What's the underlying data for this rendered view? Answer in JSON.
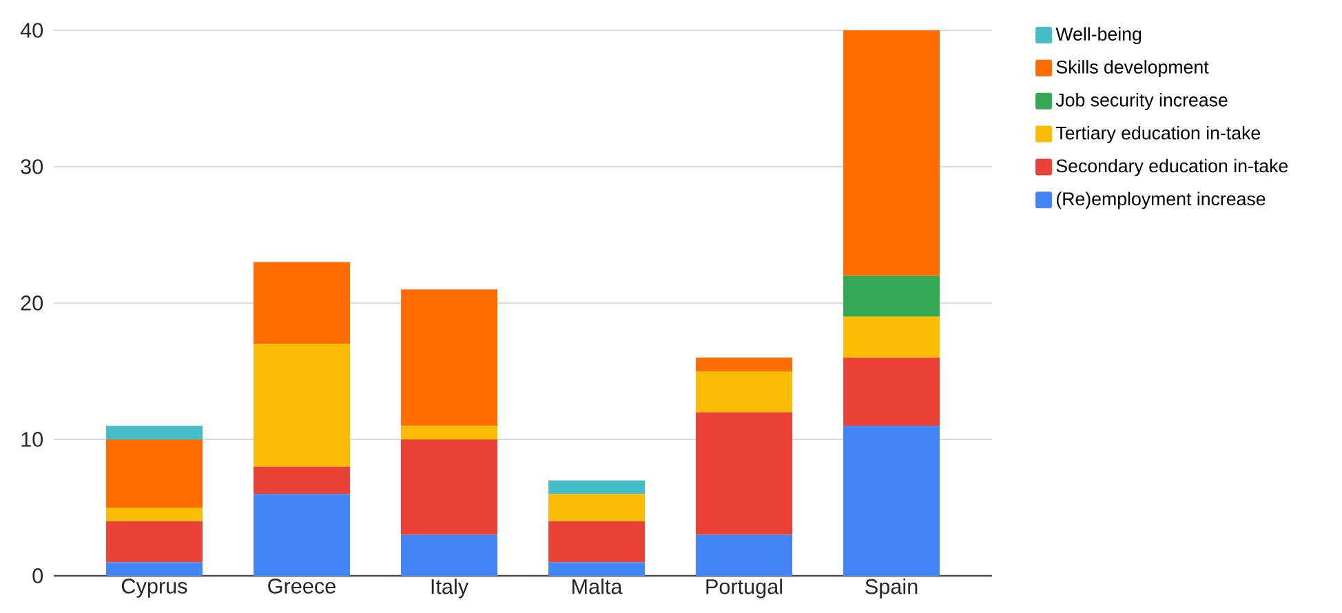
{
  "chart_data": {
    "type": "bar",
    "stacked": true,
    "categories": [
      "Cyprus",
      "Greece",
      "Italy",
      "Malta",
      "Portugal",
      "Spain"
    ],
    "series": [
      {
        "name": "(Re)employment increase",
        "color": "#4285f4",
        "values": [
          1,
          6,
          3,
          1,
          3,
          11
        ]
      },
      {
        "name": "Secondary education in-take",
        "color": "#ea4335",
        "values": [
          3,
          2,
          7,
          3,
          9,
          5
        ]
      },
      {
        "name": "Tertiary education in-take",
        "color": "#fbbc04",
        "values": [
          1,
          9,
          1,
          2,
          3,
          3
        ]
      },
      {
        "name": "Job security increase",
        "color": "#34a853",
        "values": [
          0,
          0,
          0,
          0,
          0,
          3
        ]
      },
      {
        "name": "Skills development",
        "color": "#ff6d01",
        "values": [
          5,
          6,
          10,
          0,
          1,
          18
        ]
      },
      {
        "name": "Well-being",
        "color": "#46bdc6",
        "values": [
          1,
          0,
          0,
          1,
          0,
          0
        ]
      }
    ],
    "ylim": [
      0,
      40
    ],
    "yticks": [
      0,
      10,
      20,
      30,
      40
    ],
    "grid": "y",
    "legend": "right"
  }
}
